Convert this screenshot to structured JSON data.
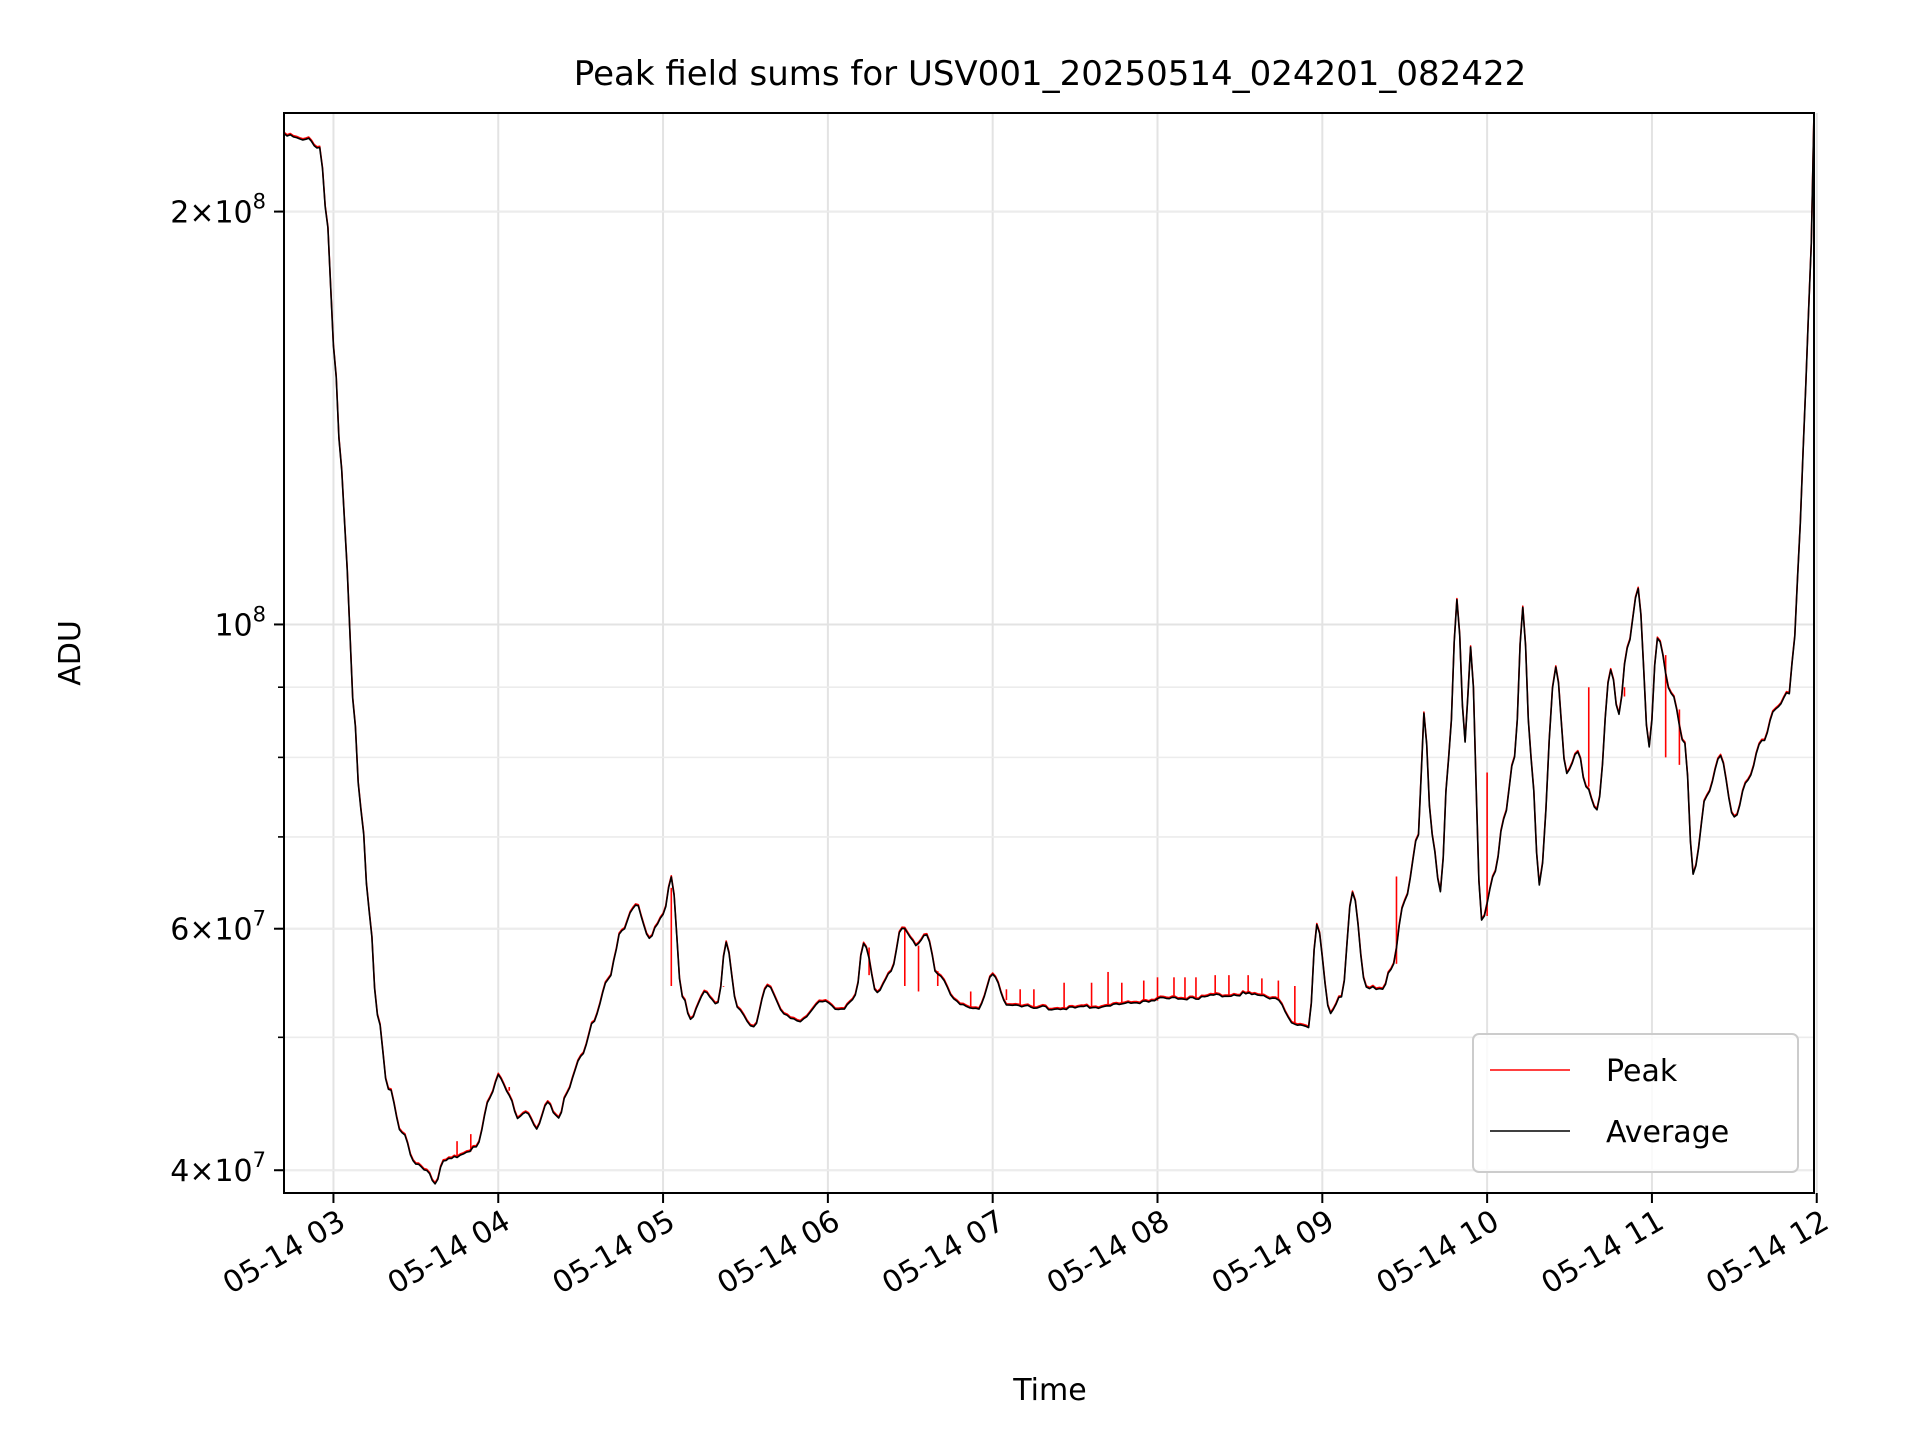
{
  "chart_data": {
    "type": "line",
    "title": "Peak field sums for USV001_20250514_024201_082422",
    "xlabel": "Time",
    "ylabel": "ADU",
    "yscale": "log",
    "grid": true,
    "legend_position": "lower-right",
    "x_ticks": [
      "05-14 03",
      "05-14 04",
      "05-14 05",
      "05-14 06",
      "05-14 07",
      "05-14 08",
      "05-14 09",
      "05-14 10",
      "05-14 11",
      "05-14 12"
    ],
    "y_ticks": [
      {
        "value": 40000000,
        "mantissa": "4",
        "base": "×10",
        "exp": "7"
      },
      {
        "value": 60000000,
        "mantissa": "6",
        "base": "×10",
        "exp": "7"
      },
      {
        "value": 100000000,
        "mantissa": "",
        "base": "10",
        "exp": "8"
      },
      {
        "value": 200000000,
        "mantissa": "2",
        "base": "×10",
        "exp": "8"
      }
    ],
    "xlim": [
      "05-14 02:42",
      "05-14 11:59"
    ],
    "ylim": [
      38500000,
      236000000
    ],
    "series": [
      {
        "name": "Peak",
        "color": "#ff0000",
        "spikes": [
          [
            "05-14 03:45",
            42000000
          ],
          [
            "05-14 03:50",
            42500000
          ],
          [
            "05-14 04:04",
            46000000
          ],
          [
            "05-14 05:03",
            54500000
          ],
          [
            "05-14 05:22",
            54500000
          ],
          [
            "05-14 06:15",
            55500000
          ],
          [
            "05-14 06:28",
            54500000
          ],
          [
            "05-14 06:33",
            54000000
          ],
          [
            "05-14 06:40",
            54500000
          ],
          [
            "05-14 06:52",
            54000000
          ],
          [
            "05-14 07:05",
            54200000
          ],
          [
            "05-14 07:10",
            54200000
          ],
          [
            "05-14 07:15",
            54200000
          ],
          [
            "05-14 07:26",
            54800000
          ],
          [
            "05-14 07:36",
            54800000
          ],
          [
            "05-14 07:42",
            55800000
          ],
          [
            "05-14 07:47",
            54800000
          ],
          [
            "05-14 07:55",
            55000000
          ],
          [
            "05-14 08:00",
            55300000
          ],
          [
            "05-14 08:06",
            55300000
          ],
          [
            "05-14 08:10",
            55300000
          ],
          [
            "05-14 08:14",
            55300000
          ],
          [
            "05-14 08:21",
            55500000
          ],
          [
            "05-14 08:26",
            55500000
          ],
          [
            "05-14 08:33",
            55500000
          ],
          [
            "05-14 08:38",
            55200000
          ],
          [
            "05-14 08:44",
            55000000
          ],
          [
            "05-14 08:50",
            54500000
          ],
          [
            "05-14 09:27",
            65500000
          ],
          [
            "05-14 10:00",
            78000000
          ],
          [
            "05-14 10:37",
            90000000
          ],
          [
            "05-14 10:50",
            90000000
          ],
          [
            "05-14 11:05",
            80000000
          ],
          [
            "05-14 11:10",
            79000000
          ]
        ]
      },
      {
        "name": "Average",
        "color": "#000000",
        "points": [
          [
            "05-14 02:42",
            228000000
          ],
          [
            "05-14 02:50",
            226000000
          ],
          [
            "05-14 02:55",
            222000000
          ],
          [
            "05-14 02:58",
            195000000
          ],
          [
            "05-14 03:00",
            160000000
          ],
          [
            "05-14 03:03",
            130000000
          ],
          [
            "05-14 03:05",
            110000000
          ],
          [
            "05-14 03:07",
            88000000
          ],
          [
            "05-14 03:10",
            73000000
          ],
          [
            "05-14 03:13",
            62000000
          ],
          [
            "05-14 03:16",
            52000000
          ],
          [
            "05-14 03:20",
            46000000
          ],
          [
            "05-14 03:25",
            42500000
          ],
          [
            "05-14 03:30",
            40500000
          ],
          [
            "05-14 03:34",
            40000000
          ],
          [
            "05-14 03:37",
            39000000
          ],
          [
            "05-14 03:40",
            40500000
          ],
          [
            "05-14 03:45",
            41000000
          ],
          [
            "05-14 03:52",
            41500000
          ],
          [
            "05-14 03:57",
            45000000
          ],
          [
            "05-14 04:00",
            47000000
          ],
          [
            "05-14 04:04",
            45500000
          ],
          [
            "05-14 04:07",
            43500000
          ],
          [
            "05-14 04:10",
            44000000
          ],
          [
            "05-14 04:14",
            43000000
          ],
          [
            "05-14 04:18",
            45000000
          ],
          [
            "05-14 04:22",
            43500000
          ],
          [
            "05-14 04:25",
            45500000
          ],
          [
            "05-14 04:30",
            48500000
          ],
          [
            "05-14 04:35",
            51500000
          ],
          [
            "05-14 04:40",
            55000000
          ],
          [
            "05-14 04:45",
            60000000
          ],
          [
            "05-14 04:50",
            62500000
          ],
          [
            "05-14 04:55",
            59000000
          ],
          [
            "05-14 05:00",
            61500000
          ],
          [
            "05-14 05:03",
            65500000
          ],
          [
            "05-14 05:07",
            53500000
          ],
          [
            "05-14 05:10",
            51500000
          ],
          [
            "05-14 05:15",
            54000000
          ],
          [
            "05-14 05:20",
            53000000
          ],
          [
            "05-14 05:23",
            58500000
          ],
          [
            "05-14 05:27",
            52500000
          ],
          [
            "05-14 05:33",
            51000000
          ],
          [
            "05-14 05:38",
            54500000
          ],
          [
            "05-14 05:44",
            52000000
          ],
          [
            "05-14 05:50",
            51500000
          ],
          [
            "05-14 05:58",
            53000000
          ],
          [
            "05-14 06:05",
            52500000
          ],
          [
            "05-14 06:10",
            53500000
          ],
          [
            "05-14 06:13",
            58500000
          ],
          [
            "05-14 06:18",
            54000000
          ],
          [
            "05-14 06:23",
            56000000
          ],
          [
            "05-14 06:27",
            60000000
          ],
          [
            "05-14 06:32",
            58500000
          ],
          [
            "05-14 06:36",
            59500000
          ],
          [
            "05-14 06:40",
            55500000
          ],
          [
            "05-14 06:47",
            53000000
          ],
          [
            "05-14 06:55",
            52500000
          ],
          [
            "05-14 07:00",
            55500000
          ],
          [
            "05-14 07:05",
            53000000
          ],
          [
            "05-14 07:15",
            52500000
          ],
          [
            "05-14 07:30",
            52500000
          ],
          [
            "05-14 07:45",
            52800000
          ],
          [
            "05-14 08:00",
            53300000
          ],
          [
            "05-14 08:15",
            53500000
          ],
          [
            "05-14 08:30",
            53800000
          ],
          [
            "05-14 08:43",
            53500000
          ],
          [
            "05-14 08:50",
            51000000
          ],
          [
            "05-14 08:55",
            50800000
          ],
          [
            "05-14 08:58",
            60500000
          ],
          [
            "05-14 09:03",
            52000000
          ],
          [
            "05-14 09:07",
            53500000
          ],
          [
            "05-14 09:11",
            64000000
          ],
          [
            "05-14 09:16",
            54500000
          ],
          [
            "05-14 09:22",
            54000000
          ],
          [
            "05-14 09:25",
            56000000
          ],
          [
            "05-14 09:30",
            63000000
          ],
          [
            "05-14 09:35",
            70000000
          ],
          [
            "05-14 09:37",
            86000000
          ],
          [
            "05-14 09:40",
            70000000
          ],
          [
            "05-14 09:43",
            64000000
          ],
          [
            "05-14 09:46",
            80000000
          ],
          [
            "05-14 09:49",
            104000000
          ],
          [
            "05-14 09:52",
            82000000
          ],
          [
            "05-14 09:54",
            96000000
          ],
          [
            "05-14 09:58",
            61000000
          ],
          [
            "05-14 10:03",
            66000000
          ],
          [
            "05-14 10:06",
            72000000
          ],
          [
            "05-14 10:10",
            80000000
          ],
          [
            "05-14 10:13",
            103000000
          ],
          [
            "05-14 10:16",
            80000000
          ],
          [
            "05-14 10:19",
            64500000
          ],
          [
            "05-14 10:25",
            93000000
          ],
          [
            "05-14 10:29",
            78000000
          ],
          [
            "05-14 10:33",
            81000000
          ],
          [
            "05-14 10:36",
            76000000
          ],
          [
            "05-14 10:40",
            73000000
          ],
          [
            "05-14 10:45",
            93000000
          ],
          [
            "05-14 10:48",
            86000000
          ],
          [
            "05-14 10:51",
            96000000
          ],
          [
            "05-14 10:55",
            106000000
          ],
          [
            "05-14 10:59",
            81500000
          ],
          [
            "05-14 11:02",
            98000000
          ],
          [
            "05-14 11:07",
            89000000
          ],
          [
            "05-14 11:12",
            82000000
          ],
          [
            "05-14 11:15",
            66000000
          ],
          [
            "05-14 11:20",
            75000000
          ],
          [
            "05-14 11:25",
            80000000
          ],
          [
            "05-14 11:30",
            72500000
          ],
          [
            "05-14 11:35",
            77000000
          ],
          [
            "05-14 11:40",
            82000000
          ],
          [
            "05-14 11:45",
            87000000
          ],
          [
            "05-14 11:50",
            89000000
          ],
          [
            "05-14 11:52",
            98000000
          ],
          [
            "05-14 11:54",
            118000000
          ],
          [
            "05-14 11:56",
            150000000
          ],
          [
            "05-14 11:58",
            190000000
          ],
          [
            "05-14 11:59",
            236000000
          ]
        ]
      }
    ]
  }
}
